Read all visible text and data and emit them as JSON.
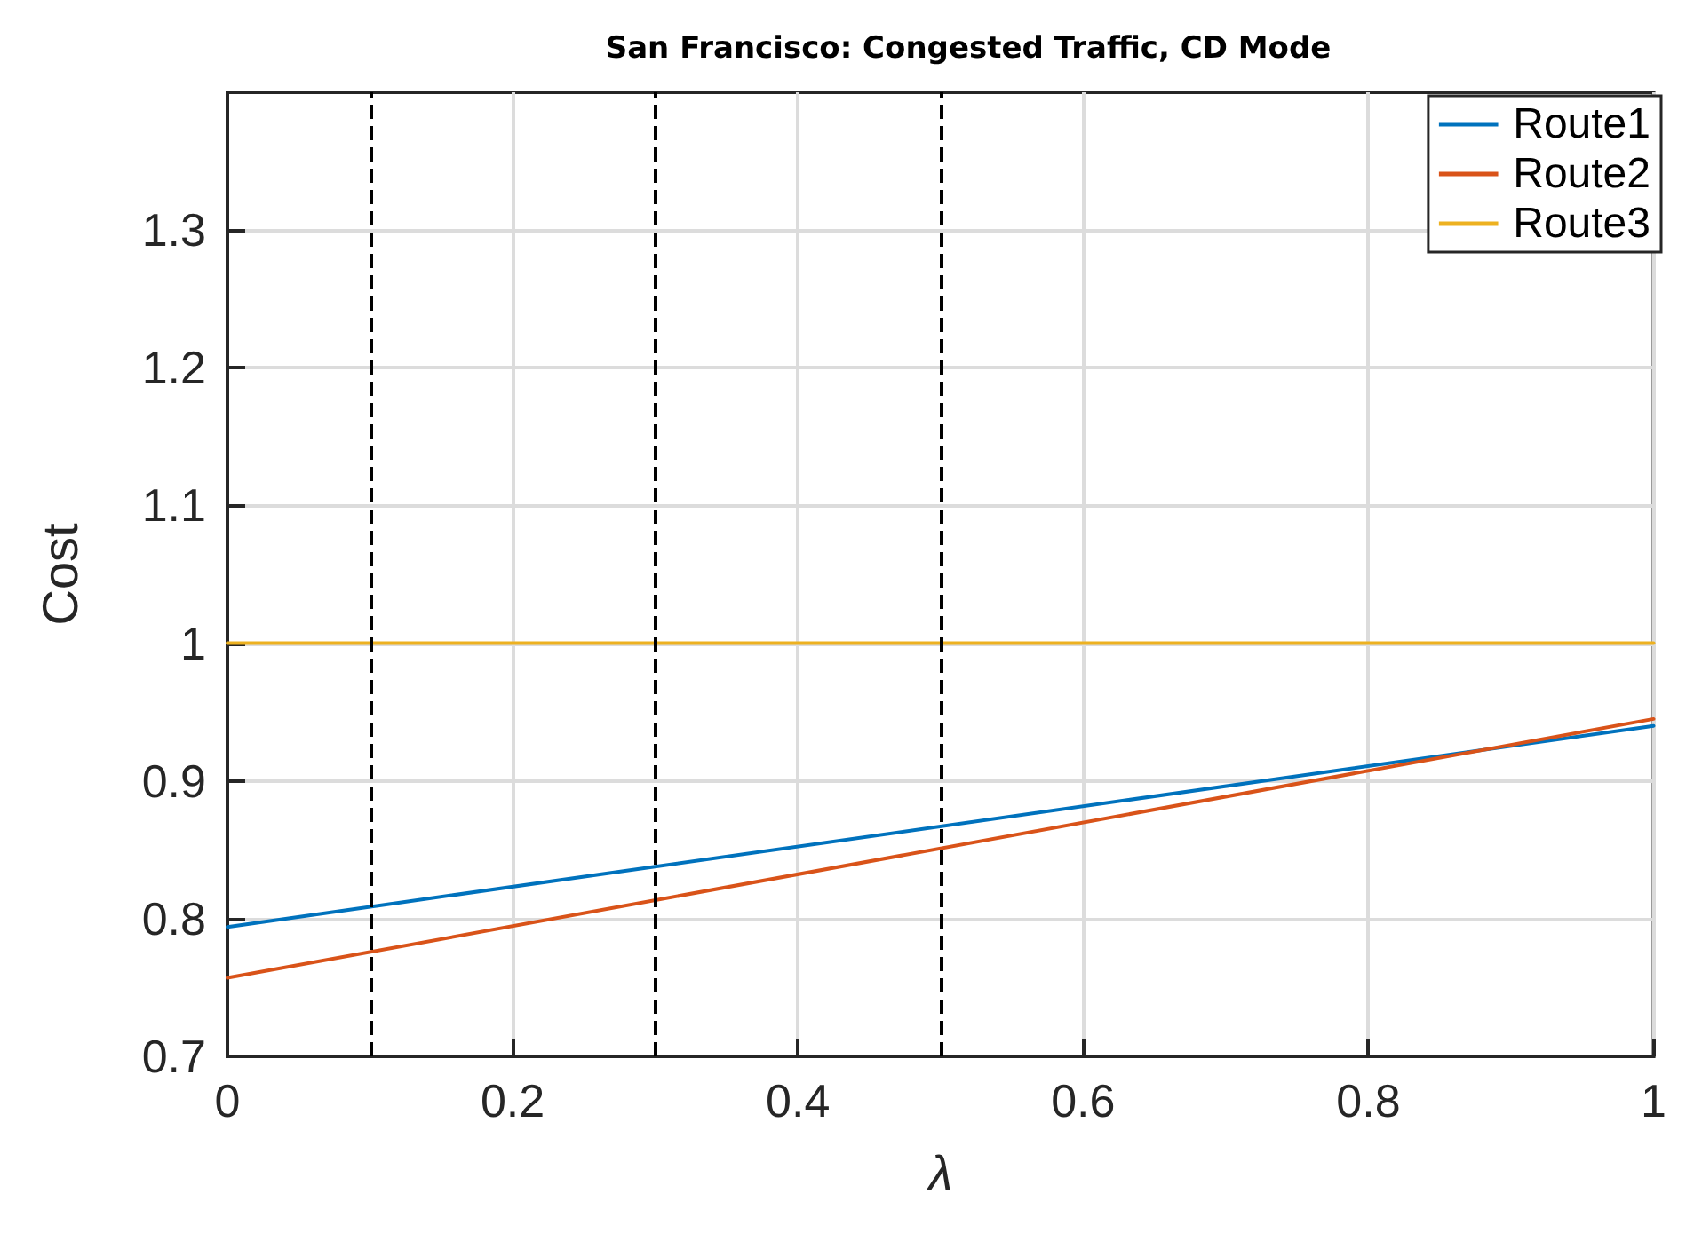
{
  "chart_data": {
    "type": "line",
    "title": "San Francisco: Congested Traffic, CD Mode",
    "xlabel": "λ",
    "ylabel": "Cost",
    "x": [
      0,
      1
    ],
    "series": [
      {
        "name": "Route1",
        "color": "#0072bd",
        "values": [
          0.794,
          0.94
        ]
      },
      {
        "name": "Route2",
        "color": "#d95319",
        "values": [
          0.757,
          0.945
        ]
      },
      {
        "name": "Route3",
        "color": "#edb120",
        "values": [
          1,
          1
        ]
      }
    ],
    "xlim": [
      0,
      1
    ],
    "xticks": [
      0,
      0.2,
      0.4,
      0.6,
      0.8,
      1
    ],
    "ylim": [
      0.7,
      1.4
    ],
    "yticks": [
      0.7,
      0.8,
      0.9,
      1,
      1.1,
      1.2,
      1.3
    ],
    "ref_lines": [
      {
        "axis": "x",
        "value": 0.1,
        "color": "#000000",
        "line_style": "dashed"
      },
      {
        "axis": "x",
        "value": 0.3,
        "color": "#000000",
        "line_style": "dashed"
      },
      {
        "axis": "x",
        "value": 0.5,
        "color": "#000000",
        "line_style": "dashed"
      }
    ],
    "grid": true,
    "legend": "top right",
    "marker": "none",
    "line_style": "solid"
  }
}
